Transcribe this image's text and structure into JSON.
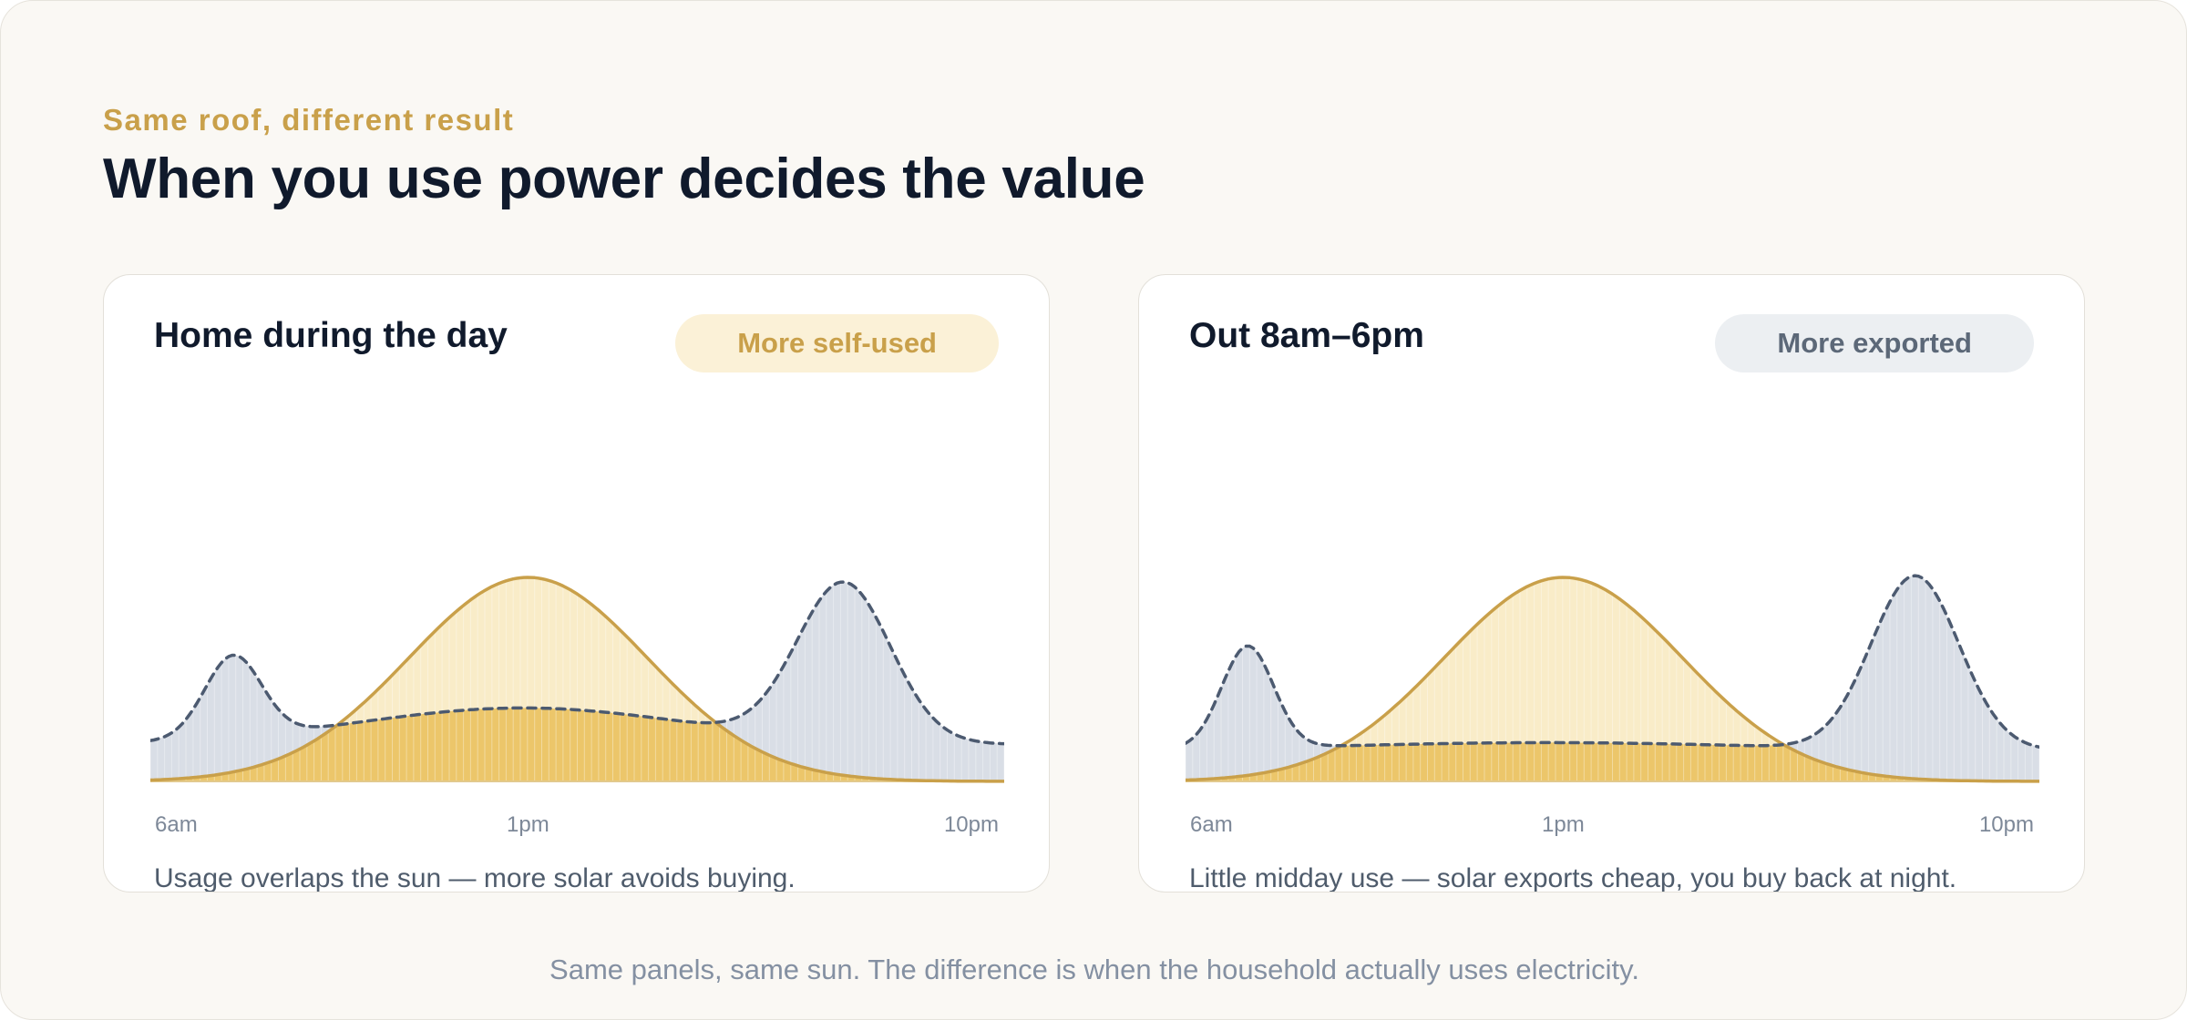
{
  "header": {
    "eyebrow": "Same roof, different result",
    "title": "When you use power decides the value"
  },
  "footer": "Same panels, same sun. The difference is when the household actually uses electricity.",
  "colors": {
    "solar_line": "#c9a04a",
    "solar_fill": "#f9ecc8",
    "self_used_fill": "#ecc66a",
    "usage_fill": "#d9dee6",
    "usage_line": "#4c5a70"
  },
  "chart_data": [
    {
      "type": "area",
      "title": "Home during the day",
      "badge": "More self-used",
      "badge_style": "gold",
      "caption": "Usage overlaps the sun — more solar avoids buying.",
      "x_ticks": [
        "6am",
        "1pm",
        "10pm"
      ],
      "x_range_hours": [
        6,
        22.5
      ],
      "y_range": [
        0,
        1
      ],
      "series": [
        {
          "style": "solar",
          "peak": 1.0,
          "center_hour": 13.3,
          "width_hours": 2.3
        },
        {
          "style": "usage",
          "base": 0.18,
          "bumps": [
            {
              "center_hour": 7.6,
              "peak": 0.58,
              "width_hours": 0.55
            },
            {
              "center_hour": 13.2,
              "peak": 0.36,
              "width_hours": 3.2
            },
            {
              "center_hour": 19.4,
              "peak": 0.95,
              "width_hours": 0.9
            }
          ]
        }
      ]
    },
    {
      "type": "area",
      "title": "Out 8am–6pm",
      "badge": "More exported",
      "badge_style": "grey",
      "caption": "Little midday use — solar exports cheap, you buy back at night.",
      "x_ticks": [
        "6am",
        "1pm",
        "10pm"
      ],
      "x_range_hours": [
        6,
        22.5
      ],
      "y_range": [
        0,
        1
      ],
      "series": [
        {
          "style": "solar",
          "peak": 1.0,
          "center_hour": 13.3,
          "width_hours": 2.3
        },
        {
          "style": "usage",
          "base": 0.15,
          "bumps": [
            {
              "center_hour": 7.2,
              "peak": 0.65,
              "width_hours": 0.5
            },
            {
              "center_hour": 13.0,
              "peak": 0.19,
              "width_hours": 4.0
            },
            {
              "center_hour": 20.1,
              "peak": 1.0,
              "width_hours": 0.85
            }
          ]
        }
      ]
    }
  ]
}
